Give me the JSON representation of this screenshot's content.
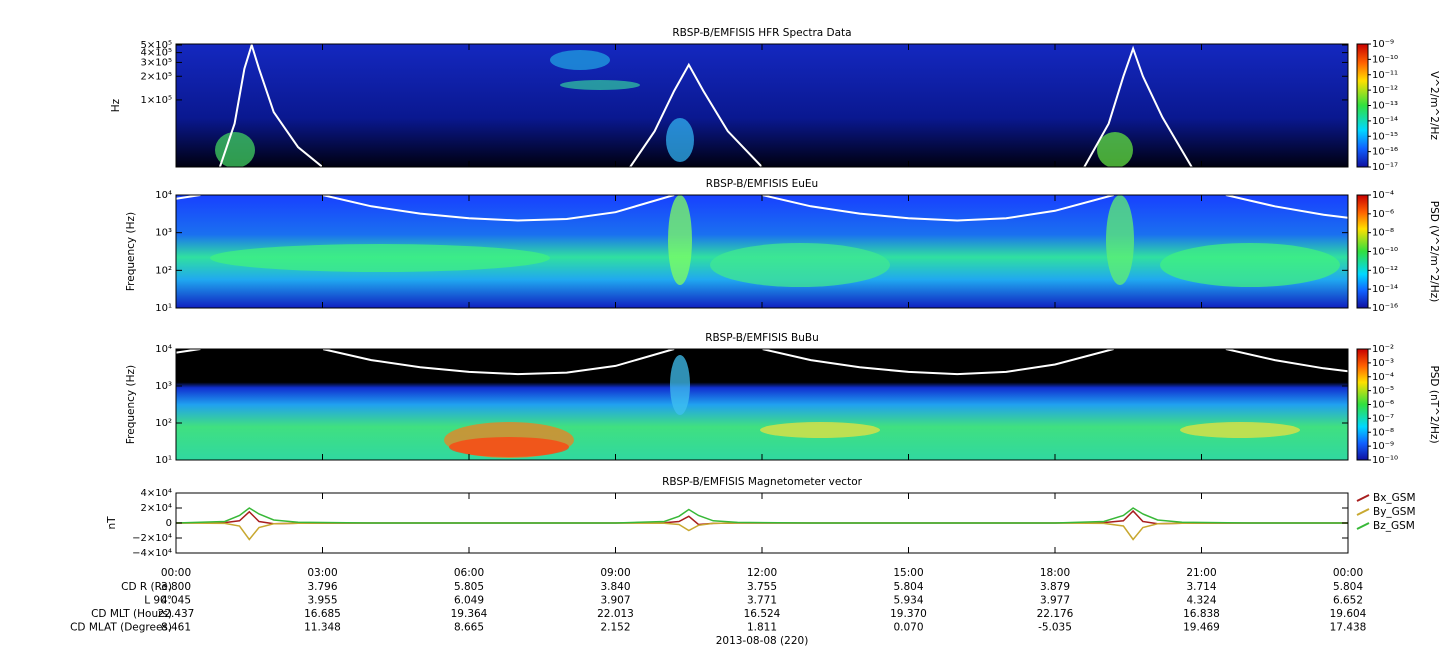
{
  "chart_data": [
    {
      "type": "spectrogram",
      "title": "RBSP-B/EMFISIS  HFR Spectra Data",
      "ylabel": "Hz",
      "log_scale": true,
      "xlim": [
        0,
        24
      ],
      "ylim": [
        14000,
        515000
      ],
      "yticks": [
        {
          "value": 500000,
          "label": "5×10⁵"
        },
        {
          "value": 400000,
          "label": "4×10⁵"
        },
        {
          "value": 300000,
          "label": "3×10⁵"
        },
        {
          "value": 200000,
          "label": "2×10⁵"
        },
        {
          "value": 100000,
          "label": "1×10⁵"
        }
      ],
      "colorbar": {
        "label": "V^2/m^2/Hz",
        "lim": [
          1e-17,
          1e-09
        ],
        "ticks": [
          {
            "value": 1e-09,
            "label": "10⁻⁹"
          },
          {
            "value": 1e-10,
            "label": "10⁻¹⁰"
          },
          {
            "value": 1e-11,
            "label": "10⁻¹¹"
          },
          {
            "value": 1e-12,
            "label": "10⁻¹²"
          },
          {
            "value": 1e-13,
            "label": "10⁻¹³"
          },
          {
            "value": 1e-14,
            "label": "10⁻¹⁴"
          },
          {
            "value": 1e-15,
            "label": "10⁻¹⁵"
          },
          {
            "value": 1e-16,
            "label": "10⁻¹⁶"
          },
          {
            "value": 1e-17,
            "label": "10⁻¹⁷"
          }
        ]
      },
      "curve": {
        "color": "#ffffff",
        "x": [
          0.9,
          1.2,
          1.4,
          1.55,
          1.7,
          2.0,
          2.5,
          3.0,
          null,
          9.3,
          9.8,
          10.2,
          10.5,
          10.8,
          11.3,
          12.0,
          null,
          18.6,
          19.1,
          19.4,
          19.6,
          19.8,
          20.2,
          20.8
        ],
        "values": [
          14000,
          50000,
          250000,
          500000,
          250000,
          70000,
          25000,
          14000,
          null,
          14000,
          40000,
          130000,
          280000,
          130000,
          40000,
          14000,
          null,
          14000,
          50000,
          200000,
          450000,
          200000,
          60000,
          14000
        ]
      }
    },
    {
      "type": "spectrogram",
      "title": "RBSP-B/EMFISIS  EuEu",
      "ylabel": "Frequency (Hz)",
      "log_scale": true,
      "xlim": [
        0,
        24
      ],
      "ylim": [
        10,
        10000
      ],
      "yticks": [
        {
          "value": 10000,
          "label": "10⁴"
        },
        {
          "value": 1000,
          "label": "10³"
        },
        {
          "value": 100,
          "label": "10²"
        },
        {
          "value": 10,
          "label": "10¹"
        }
      ],
      "colorbar": {
        "label": "PSD (V^2/m^2/Hz)",
        "lim": [
          1e-16,
          0.0001
        ],
        "ticks": [
          {
            "value": 0.0001,
            "label": "10⁻⁴"
          },
          {
            "value": 1e-06,
            "label": "10⁻⁶"
          },
          {
            "value": 1e-08,
            "label": "10⁻⁸"
          },
          {
            "value": 1e-10,
            "label": "10⁻¹⁰"
          },
          {
            "value": 1e-12,
            "label": "10⁻¹²"
          },
          {
            "value": 1e-14,
            "label": "10⁻¹⁴"
          },
          {
            "value": 1e-16,
            "label": "10⁻¹⁶"
          }
        ]
      },
      "curve": {
        "color": "#ffffff",
        "x": [
          0,
          0.5,
          null,
          3.0,
          4,
          5,
          6,
          7,
          8,
          9,
          10.2,
          null,
          12.0,
          13,
          14,
          15,
          16,
          17,
          18,
          19.2,
          null,
          21.5,
          22.5,
          23.5,
          24
        ],
        "values": [
          8000,
          10000,
          null,
          10000,
          5000,
          3200,
          2400,
          2100,
          2300,
          3500,
          10000,
          null,
          10000,
          5000,
          3200,
          2400,
          2100,
          2400,
          3800,
          10000,
          null,
          10000,
          5000,
          3000,
          2500
        ]
      }
    },
    {
      "type": "spectrogram",
      "title": "RBSP-B/EMFISIS  BuBu",
      "ylabel": "Frequency (Hz)",
      "log_scale": true,
      "xlim": [
        0,
        24
      ],
      "ylim": [
        10,
        10000
      ],
      "yticks": [
        {
          "value": 10000,
          "label": "10⁴"
        },
        {
          "value": 1000,
          "label": "10³"
        },
        {
          "value": 100,
          "label": "10²"
        },
        {
          "value": 10,
          "label": "10¹"
        }
      ],
      "colorbar": {
        "label": "PSD (nT^2/Hz)",
        "lim": [
          1e-10,
          0.01
        ],
        "ticks": [
          {
            "value": 0.01,
            "label": "10⁻²"
          },
          {
            "value": 0.001,
            "label": "10⁻³"
          },
          {
            "value": 0.0001,
            "label": "10⁻⁴"
          },
          {
            "value": 1e-05,
            "label": "10⁻⁵"
          },
          {
            "value": 1e-06,
            "label": "10⁻⁶"
          },
          {
            "value": 1e-07,
            "label": "10⁻⁷"
          },
          {
            "value": 1e-08,
            "label": "10⁻⁸"
          },
          {
            "value": 1e-09,
            "label": "10⁻⁹"
          },
          {
            "value": 1e-10,
            "label": "10⁻¹⁰"
          }
        ]
      },
      "curve": {
        "color": "#ffffff",
        "x": [
          0,
          0.5,
          null,
          3.0,
          4,
          5,
          6,
          7,
          8,
          9,
          10.2,
          null,
          12.0,
          13,
          14,
          15,
          16,
          17,
          18,
          19.2,
          null,
          21.5,
          22.5,
          23.5,
          24
        ],
        "values": [
          8000,
          10000,
          null,
          10000,
          5000,
          3200,
          2400,
          2100,
          2300,
          3500,
          10000,
          null,
          10000,
          5000,
          3200,
          2400,
          2100,
          2400,
          3800,
          10000,
          null,
          10000,
          5000,
          3000,
          2500
        ]
      }
    },
    {
      "type": "line",
      "title": "RBSP-B/EMFISIS  Magnetometer vector",
      "ylabel": "nT",
      "xlabel": "2013-08-08 (220)",
      "xlim": [
        0,
        24
      ],
      "ylim": [
        -40000,
        40000
      ],
      "yticks": [
        {
          "value": 40000,
          "label": "4×10⁴"
        },
        {
          "value": 20000,
          "label": "2×10⁴"
        },
        0,
        {
          "value": -20000,
          "label": "−2×10⁴"
        },
        {
          "value": -40000,
          "label": "−4×10⁴"
        }
      ],
      "xticks": [
        {
          "value": 0,
          "label": "00:00"
        },
        {
          "value": 3,
          "label": "03:00"
        },
        {
          "value": 6,
          "label": "06:00"
        },
        {
          "value": 9,
          "label": "09:00"
        },
        {
          "value": 12,
          "label": "12:00"
        },
        {
          "value": 15,
          "label": "15:00"
        },
        {
          "value": 18,
          "label": "18:00"
        },
        {
          "value": 21,
          "label": "21:00"
        },
        {
          "value": 24,
          "label": "00:00"
        }
      ],
      "x": [
        0,
        1.0,
        1.3,
        1.5,
        1.7,
        2.0,
        2.5,
        4,
        9,
        10.0,
        10.3,
        10.5,
        10.7,
        11.0,
        11.5,
        13,
        18,
        19.0,
        19.4,
        19.6,
        19.8,
        20.1,
        20.6,
        22,
        24
      ],
      "series": [
        {
          "name": "Bx_GSM",
          "color": "#a81e1e",
          "values": [
            0,
            500,
            3000,
            15000,
            2000,
            -1000,
            -300,
            0,
            0,
            300,
            2000,
            9000,
            -2000,
            -500,
            0,
            0,
            0,
            500,
            3000,
            16000,
            2000,
            -1000,
            -300,
            0,
            0
          ]
        },
        {
          "name": "By_GSM",
          "color": "#c8a830",
          "values": [
            0,
            -500,
            -4000,
            -22000,
            -6000,
            -1000,
            -300,
            0,
            0,
            -300,
            -2000,
            -10000,
            -3000,
            -500,
            0,
            0,
            0,
            -500,
            -4000,
            -22000,
            -6000,
            -1000,
            -300,
            0,
            0
          ]
        },
        {
          "name": "Bz_GSM",
          "color": "#38b838",
          "values": [
            0,
            2000,
            10000,
            20000,
            12000,
            4000,
            1000,
            0,
            0,
            2000,
            9000,
            18000,
            10000,
            3000,
            800,
            0,
            0,
            2000,
            10000,
            20000,
            12000,
            4000,
            1000,
            0,
            0
          ]
        }
      ],
      "ephemeris": [
        {
          "label": "CD R (Re)",
          "values": [
            "3.800",
            "3.796",
            "5.805",
            "3.840",
            "3.755",
            "5.804",
            "3.879",
            "3.714",
            "5.804"
          ]
        },
        {
          "label": "L 90°",
          "values": [
            "4.045",
            "3.955",
            "6.049",
            "3.907",
            "3.771",
            "5.934",
            "3.977",
            "4.324",
            "6.652"
          ]
        },
        {
          "label": "CD MLT (Hours)",
          "values": [
            "22.437",
            "16.685",
            "19.364",
            "22.013",
            "16.524",
            "19.370",
            "22.176",
            "16.838",
            "19.604"
          ]
        },
        {
          "label": "CD MLAT (Degrees)",
          "values": [
            "8.461",
            "11.348",
            "8.665",
            "2.152",
            "1.811",
            "0.070",
            "-5.035",
            "19.469",
            "17.438"
          ]
        }
      ]
    }
  ]
}
